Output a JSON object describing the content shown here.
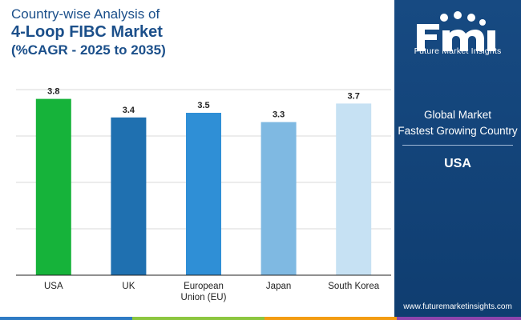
{
  "title": {
    "line1": "Country-wise Analysis of",
    "line2": "4-Loop FIBC Market",
    "line3": "(%CAGR - 2025 to 2035)"
  },
  "chart_data": {
    "type": "bar",
    "categories": [
      [
        "USA"
      ],
      [
        "UK"
      ],
      [
        "European",
        "Union (EU)"
      ],
      [
        "Japan"
      ],
      [
        "South Korea"
      ]
    ],
    "values": [
      3.8,
      3.4,
      3.5,
      3.3,
      3.7
    ],
    "value_labels": [
      "3.8",
      "3.4",
      "3.5",
      "3.3",
      "3.7"
    ],
    "colors": [
      "#16b33a",
      "#1f70b0",
      "#2f8fd6",
      "#7fb9e2",
      "#c6e1f3"
    ],
    "ylim": [
      0,
      4
    ],
    "grid": true,
    "xlabel": "",
    "ylabel": ""
  },
  "panel": {
    "logo_text": "Future Market Insights",
    "label_line1": "Global Market",
    "label_line2": "Fastest Growing Country",
    "country": "USA",
    "url": "www.futuremarketinsights.com"
  },
  "colors": {
    "title": "#1b4f8a",
    "panel_bg": "#174a82",
    "strip": [
      "#2e7bc4",
      "#8cc63f",
      "#f39c12",
      "#8e44ad"
    ]
  }
}
